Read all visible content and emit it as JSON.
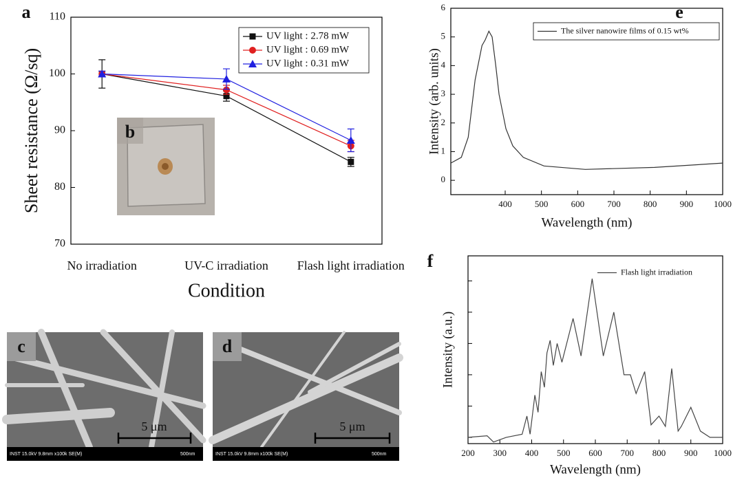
{
  "chart_data": [
    {
      "type": "line",
      "label": "a",
      "categories": [
        "No irradiation",
        "UV-C irradiation",
        "Flash light irradiation"
      ],
      "xlabel": "Condition",
      "ylabel": "Sheet resistance (Ω/sq)",
      "ylim": [
        70,
        110
      ],
      "yticks": [
        70,
        80,
        90,
        100,
        110
      ],
      "legend": "upper right",
      "legend_frame": true,
      "series": [
        {
          "name": "UV light : 2.78 mW",
          "color": "#111111",
          "marker": "square",
          "values": [
            100,
            96.1,
            84.5
          ],
          "errors": [
            2.5,
            0.9,
            0.8
          ]
        },
        {
          "name": "UV light : 0.69 mW",
          "color": "#e02020",
          "marker": "circle",
          "values": [
            100,
            97.2,
            87.3
          ],
          "errors": [
            0.5,
            0.8,
            1.0
          ]
        },
        {
          "name": "UV light : 0.31 mW",
          "color": "#2020e0",
          "marker": "triangle",
          "values": [
            100,
            99.1,
            88.3
          ],
          "errors": [
            0.5,
            1.8,
            2.0
          ]
        }
      ]
    },
    {
      "type": "line",
      "label": "e",
      "x": [
        250,
        279,
        298,
        317,
        336,
        345,
        355,
        364,
        374,
        383,
        402,
        421,
        450,
        507,
        621,
        812,
        1000
      ],
      "xlabel": "Wavelength (nm)",
      "ylabel": "Intensity (arb. units)",
      "xlim": [
        250,
        1000
      ],
      "xticks": [
        400,
        500,
        600,
        700,
        800,
        900,
        1000
      ],
      "ylim": [
        -0.5,
        6
      ],
      "yticks": [
        0,
        1,
        2,
        3,
        4,
        5,
        6
      ],
      "legend": "upper right",
      "legend_frame": true,
      "series": [
        {
          "name": "The silver nanowire films of 0.15 wt%",
          "color": "#333333",
          "values": [
            0.6,
            0.8,
            1.5,
            3.5,
            4.7,
            4.9,
            5.2,
            5.0,
            4.0,
            3.0,
            1.8,
            1.2,
            0.8,
            0.5,
            0.38,
            0.45,
            0.6
          ]
        }
      ]
    },
    {
      "type": "line",
      "label": "f",
      "x": [
        200,
        260,
        280,
        320,
        370,
        385,
        395,
        410,
        420,
        430,
        440,
        448,
        458,
        468,
        480,
        495,
        530,
        555,
        590,
        625,
        658,
        690,
        710,
        728,
        755,
        775,
        800,
        820,
        840,
        860,
        870,
        900,
        930,
        960,
        1000
      ],
      "xlabel": "Wavelength (nm)",
      "ylabel": "Intensity (a.u.)",
      "xlim": [
        200,
        1000
      ],
      "xticks": [
        200,
        300,
        400,
        500,
        600,
        700,
        800,
        900,
        1000
      ],
      "ylim": [
        0,
        6
      ],
      "yticks": [
        0.2,
        1.2,
        2.2,
        3.2,
        4.2,
        5.2
      ],
      "yticklabels": false,
      "legend": "upper right",
      "legend_frame": false,
      "series": [
        {
          "name": "Flash light irradiation",
          "color": "#444444",
          "values": [
            0.2,
            0.25,
            0.05,
            0.2,
            0.3,
            0.88,
            0.3,
            1.55,
            1.0,
            2.3,
            1.8,
            2.9,
            3.3,
            2.5,
            3.2,
            2.6,
            4.0,
            2.8,
            5.27,
            2.8,
            4.2,
            2.2,
            2.2,
            1.6,
            2.3,
            0.6,
            0.88,
            0.55,
            2.4,
            0.4,
            0.55,
            1.16,
            0.4,
            0.2,
            0.2
          ]
        }
      ]
    }
  ],
  "images": [
    {
      "label": "b"
    },
    {
      "label": "c",
      "scale_bar": "5 μm",
      "info": "INST 15.0kV 9.8mm x100k SE(M)",
      "scale": "500nm"
    },
    {
      "label": "d",
      "scale_bar": "5 μm",
      "info": "INST 15.0kV 9.8mm x100k SE(M)",
      "scale": "500nm"
    }
  ]
}
